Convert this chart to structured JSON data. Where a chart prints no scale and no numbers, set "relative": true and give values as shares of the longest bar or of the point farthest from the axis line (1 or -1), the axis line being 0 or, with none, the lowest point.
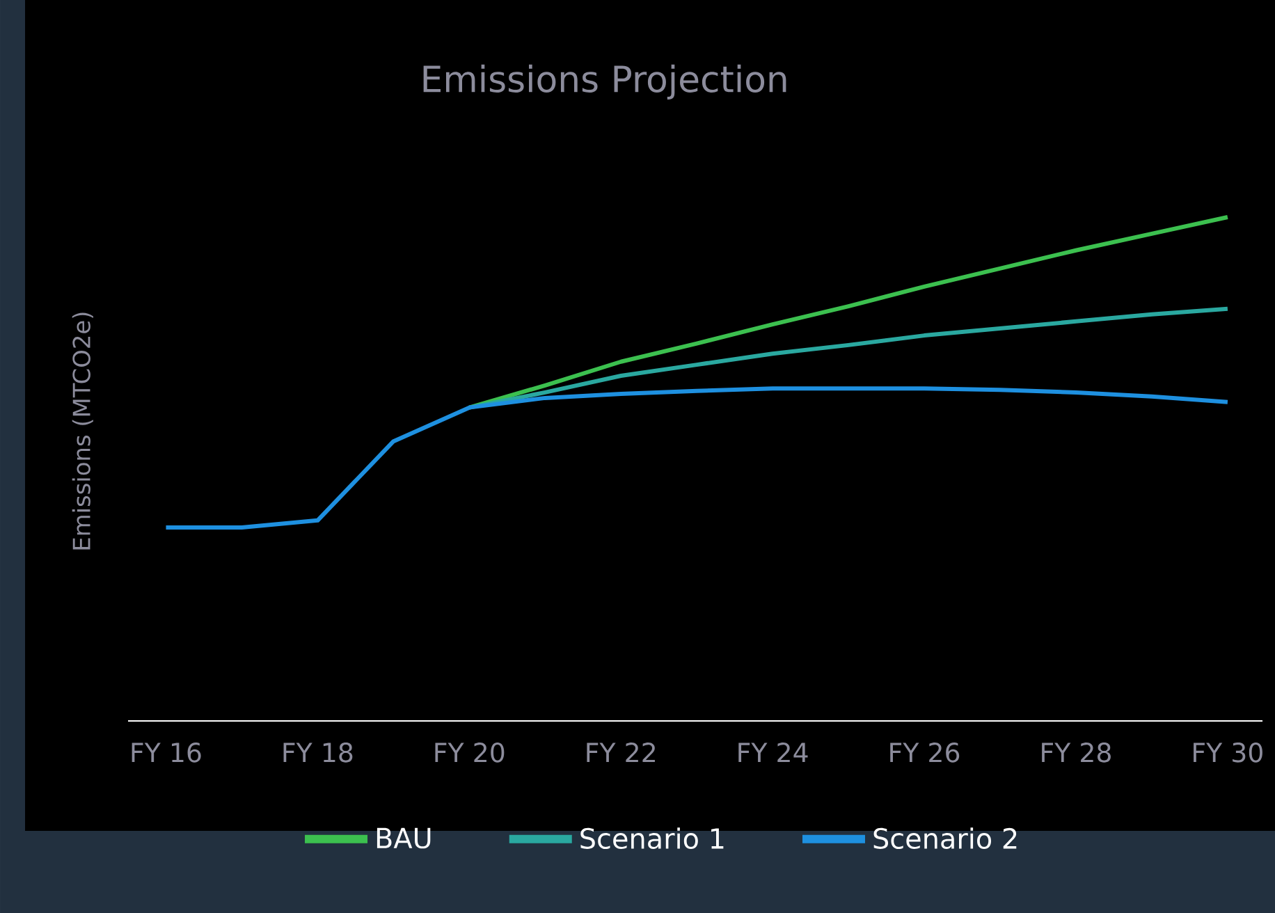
{
  "chart_data": {
    "type": "line",
    "title": "Emissions Projection",
    "ylabel": "Emissions (MTCO2e)",
    "relative": true,
    "legend": "bottom",
    "categories": [
      "FY 16",
      null,
      "FY 18",
      null,
      "FY 20",
      null,
      "FY 22",
      null,
      "FY 24",
      null,
      "FY 26",
      null,
      "FY 28",
      null,
      "FY 30"
    ],
    "series": [
      {
        "name": "BAU",
        "color": "#3cc04f",
        "values": [
          null,
          null,
          null,
          null,
          0.622,
          0.666,
          0.713,
          0.749,
          0.787,
          0.823,
          0.862,
          0.898,
          0.934,
          0.967,
          1.0
        ]
      },
      {
        "name": "Scenario 1",
        "color": "#2aa8a0",
        "values": [
          null,
          null,
          null,
          null,
          0.622,
          0.652,
          0.685,
          0.707,
          0.729,
          0.746,
          0.765,
          0.779,
          0.793,
          0.807,
          0.818
        ]
      },
      {
        "name": "Scenario 2",
        "color": "#1e90e0",
        "values": [
          0.384,
          0.384,
          0.398,
          0.555,
          0.622,
          0.641,
          0.649,
          0.655,
          0.66,
          0.66,
          0.66,
          0.657,
          0.652,
          0.644,
          0.633
        ]
      }
    ]
  }
}
